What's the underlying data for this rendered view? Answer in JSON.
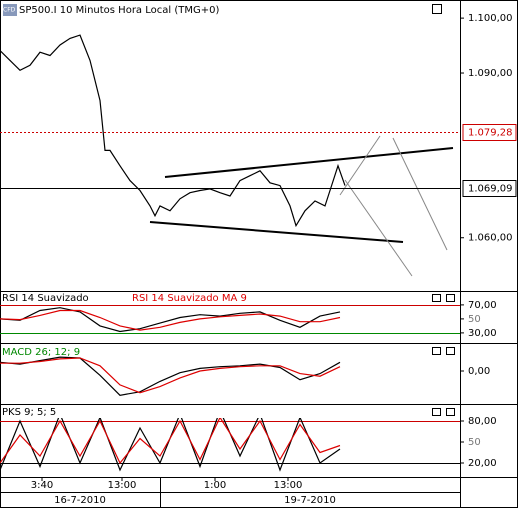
{
  "chart_data": [
    {
      "type": "line",
      "title": "SP500.I 10 Minutos Hora Local (TMG+0)",
      "color": "#000000",
      "x": [
        0,
        2,
        4,
        6,
        8,
        10,
        12,
        14,
        16,
        18,
        20,
        21,
        22,
        24,
        26,
        28,
        30,
        31,
        32,
        34,
        36,
        38,
        40,
        42,
        44,
        46,
        48,
        50,
        52,
        54,
        56,
        58,
        59.2,
        61,
        63,
        65,
        66,
        67.6,
        69
      ],
      "values": [
        1094.1,
        1092.3,
        1090.5,
        1091.4,
        1093.8,
        1093.2,
        1095.1,
        1096.3,
        1096.9,
        1092.3,
        1085.0,
        1075.9,
        1075.9,
        1073.1,
        1070.4,
        1068.6,
        1065.8,
        1064.0,
        1065.8,
        1064.9,
        1067.1,
        1068.2,
        1068.6,
        1068.9,
        1068.2,
        1067.6,
        1070.4,
        1071.3,
        1072.2,
        1070.0,
        1069.5,
        1065.8,
        1062.2,
        1064.9,
        1066.7,
        1065.8,
        1068.6,
        1073.1,
        1069.5
      ],
      "xlim": [
        0,
        92
      ],
      "ylim": [
        1050.3,
        1103.3
      ],
      "yticks": [
        {
          "value": 1060,
          "label": "1.060,00"
        },
        {
          "value": 1090,
          "label": "1.090,00"
        },
        {
          "value": 1100,
          "label": "1.100,00"
        }
      ],
      "levels": [
        {
          "value": 1079.28,
          "label": "1.079,28",
          "color": "#cc0000"
        },
        {
          "value": 1069.09,
          "label": "1.069,09",
          "color": "#000000"
        }
      ],
      "xticks": [
        {
          "value": 8.4,
          "label": "3:40"
        },
        {
          "value": 24.4,
          "label": "13:00"
        },
        {
          "value": 43,
          "label": "1:00"
        },
        {
          "value": 57.6,
          "label": "13:00"
        }
      ],
      "date_ticks": [
        {
          "value": 16,
          "label": "16-7-2010"
        },
        {
          "value": 62,
          "label": "19-7-2010"
        }
      ]
    },
    {
      "type": "line",
      "x": [
        0,
        4,
        8,
        12,
        16,
        20,
        24,
        28,
        32,
        36,
        40,
        44,
        48,
        52,
        56,
        60,
        64,
        68
      ],
      "xlim": [
        0,
        92
      ],
      "ylim": [
        17,
        77
      ],
      "series": [
        {
          "name": "RSI 14 Suavizado",
          "color": "#000000",
          "values": [
            50,
            48,
            62,
            66,
            60,
            40,
            32,
            36,
            44,
            52,
            56,
            54,
            58,
            60,
            48,
            38,
            54,
            60
          ]
        },
        {
          "name": "RSI 14 Suavizado MA 9",
          "color": "#dd0000",
          "values": [
            50,
            49,
            55,
            62,
            62,
            52,
            40,
            34,
            38,
            45,
            50,
            53,
            55,
            57,
            54,
            46,
            46,
            52
          ]
        }
      ],
      "yticks": [
        {
          "value": 30,
          "label": "30,00"
        },
        50,
        {
          "value": 70,
          "label": "70,00"
        }
      ],
      "reference_lines": [
        {
          "value": 70,
          "color": "#cc0000"
        },
        {
          "value": 30,
          "color": "#008800"
        }
      ]
    },
    {
      "type": "line",
      "title": "MACD 26; 12; 9",
      "x": [
        0,
        4,
        8,
        12,
        16,
        20,
        24,
        28,
        32,
        36,
        40,
        44,
        48,
        52,
        56,
        60,
        64,
        68
      ],
      "xlim": [
        0,
        92
      ],
      "ylim": [
        -3,
        3
      ],
      "series": [
        {
          "color": "#000000",
          "values": [
            1.0,
            0.8,
            1.2,
            1.6,
            1.5,
            -0.5,
            -2.8,
            -2.4,
            -1.2,
            -0.2,
            0.3,
            0.5,
            0.6,
            0.8,
            0.4,
            -1.0,
            -0.3,
            1.0
          ]
        },
        {
          "color": "#dd0000",
          "values": [
            0.9,
            0.9,
            1.1,
            1.4,
            1.5,
            0.6,
            -1.6,
            -2.5,
            -1.8,
            -0.8,
            0,
            0.3,
            0.5,
            0.6,
            0.6,
            -0.3,
            -0.6,
            0.5
          ]
        }
      ],
      "yticks": [
        {
          "value": 0,
          "label": "0,00"
        }
      ]
    },
    {
      "type": "line",
      "title": "PKS 9; 5; 5",
      "x": [
        0,
        4,
        8,
        12,
        16,
        20,
        24,
        28,
        32,
        36,
        40,
        44,
        48,
        52,
        56,
        60,
        64,
        68
      ],
      "xlim": [
        0,
        92
      ],
      "ylim": [
        0,
        100
      ],
      "series": [
        {
          "color": "#000000",
          "values": [
            10,
            80,
            15,
            90,
            20,
            85,
            10,
            70,
            20,
            90,
            15,
            95,
            30,
            90,
            10,
            85,
            20,
            40
          ]
        },
        {
          "color": "#dd0000",
          "values": [
            20,
            60,
            30,
            80,
            30,
            80,
            20,
            55,
            30,
            80,
            25,
            85,
            40,
            80,
            25,
            75,
            35,
            45
          ]
        }
      ],
      "yticks": [
        {
          "value": 20,
          "label": "20,00"
        },
        50,
        {
          "value": 80,
          "label": "80,00"
        }
      ],
      "reference_lines": [
        {
          "value": 80,
          "color": "#cc0000"
        },
        {
          "value": 20,
          "color": "#000000"
        }
      ]
    }
  ]
}
